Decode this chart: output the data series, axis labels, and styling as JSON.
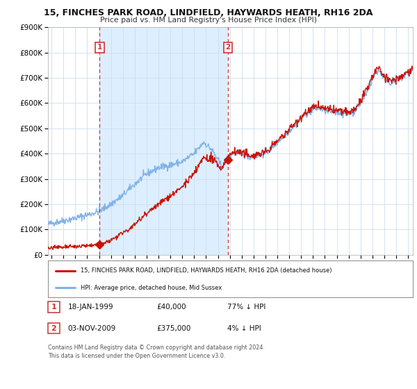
{
  "title": "15, FINCHES PARK ROAD, LINDFIELD, HAYWARDS HEATH, RH16 2DA",
  "subtitle": "Price paid vs. HM Land Registry's House Price Index (HPI)",
  "ylim": [
    0,
    900000
  ],
  "xlim_start": 1994.7,
  "xlim_end": 2025.4,
  "plot_bg_color": "#ffffff",
  "span_color": "#ddeeff",
  "grid_color": "#ccddee",
  "transaction1_date": 1999.05,
  "transaction1_price": 40000,
  "transaction1_label": "1",
  "transaction2_date": 2009.84,
  "transaction2_price": 375000,
  "transaction2_label": "2",
  "legend_line1": "15, FINCHES PARK ROAD, LINDFIELD, HAYWARDS HEATH, RH16 2DA (detached house)",
  "legend_line2": "HPI: Average price, detached house, Mid Sussex",
  "table_row1": [
    "1",
    "18-JAN-1999",
    "£40,000",
    "77% ↓ HPI"
  ],
  "table_row2": [
    "2",
    "03-NOV-2009",
    "£375,000",
    "4% ↓ HPI"
  ],
  "footnote1": "Contains HM Land Registry data © Crown copyright and database right 2024.",
  "footnote2": "This data is licensed under the Open Government Licence v3.0.",
  "hpi_color": "#7fb3e8",
  "price_color": "#cc1100",
  "marker_color": "#cc1100",
  "dashed_color": "#cc3333"
}
